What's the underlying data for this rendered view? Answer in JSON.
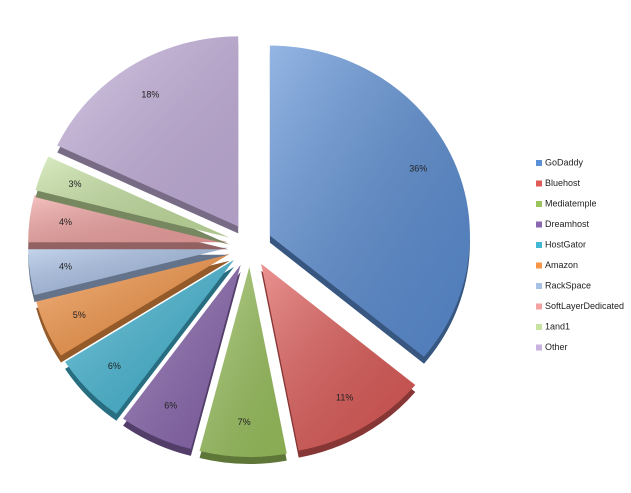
{
  "chart_data": {
    "type": "pie",
    "categories": [
      "GoDaddy",
      "Bluehost",
      "Mediatemple",
      "Dreamhost",
      "HostGator",
      "Amazon",
      "RackSpace",
      "SoftLayerDedicated",
      "1and1",
      "Other"
    ],
    "values": [
      36,
      11,
      7,
      6,
      6,
      5,
      4,
      4,
      3,
      18
    ],
    "value_labels": [
      "36%",
      "11%",
      "7%",
      "6%",
      "6%",
      "5%",
      "4%",
      "4%",
      "3%",
      "18%"
    ],
    "colors": [
      "#5b8fd6",
      "#e05a57",
      "#9cc45e",
      "#8a67b0",
      "#43b8d6",
      "#f79646",
      "#a7c0e6",
      "#f2a3a1",
      "#c7e3a2",
      "#c8b3e0"
    ],
    "legend": "right"
  }
}
